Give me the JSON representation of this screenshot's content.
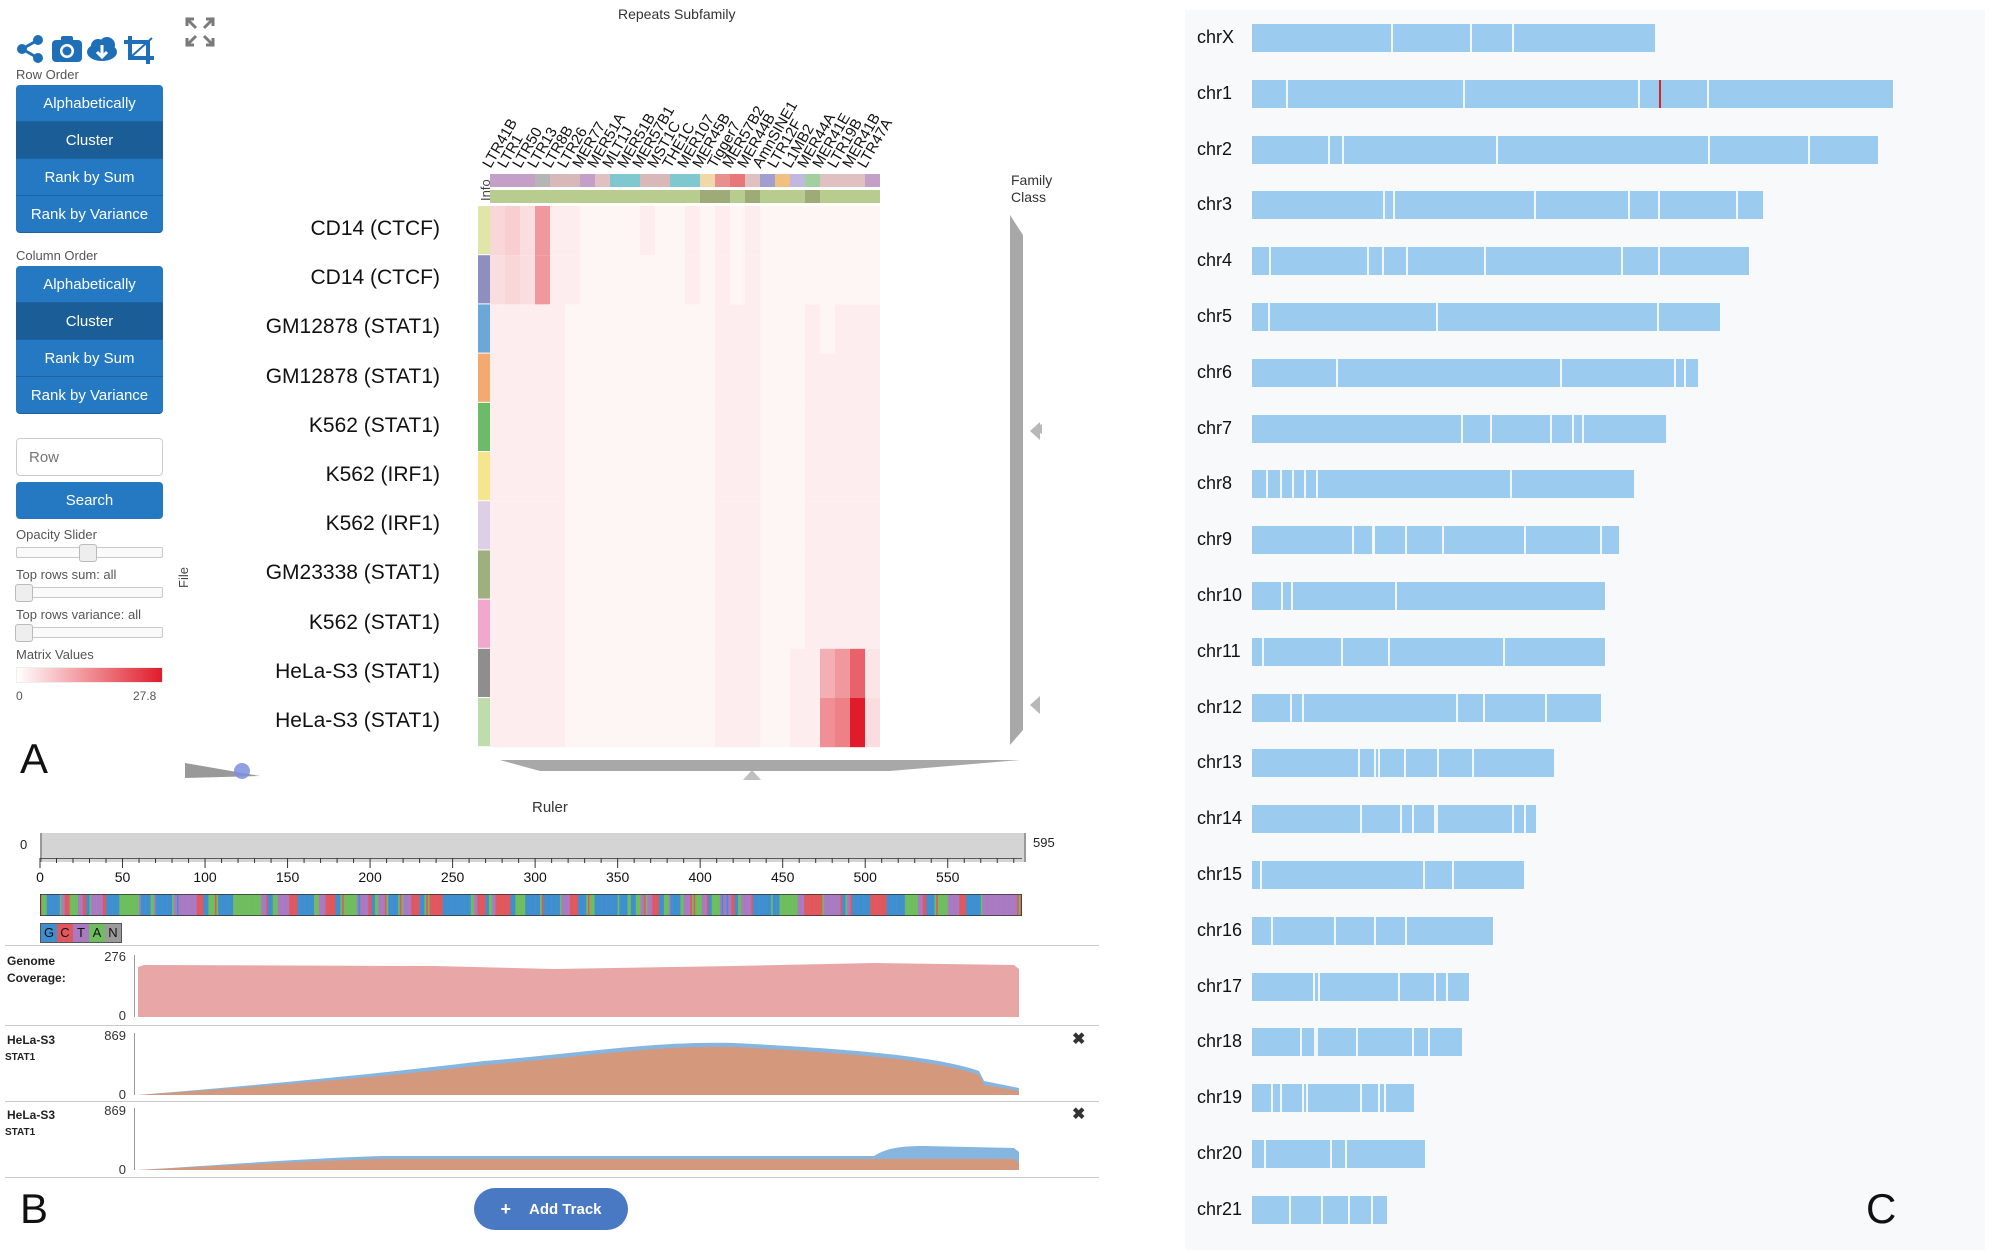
{
  "heatmap": {
    "title": "Repeats Subfamily",
    "row_order_label": "Row Order",
    "column_order_label": "Column Order",
    "row_order_buttons": [
      "Alphabetically",
      "Cluster",
      "Rank by Sum",
      "Rank by Variance"
    ],
    "column_order_buttons": [
      "Alphabetically",
      "Cluster",
      "Rank by Sum",
      "Rank by Variance"
    ],
    "search_placeholder": "Row",
    "search_button": "Search",
    "opacity_label": "Opacity Slider",
    "top_sum_label": "Top rows sum: all",
    "top_variance_label": "Top rows variance: all",
    "matrix_values_label": "Matrix Values",
    "matrix_min": "0",
    "matrix_max": "27.8",
    "info_label": "Info",
    "file_label": "File",
    "family_label": "Family",
    "class_label": "Class",
    "rows": [
      "CD14 (CTCF)",
      "CD14 (CTCF)",
      "GM12878 (STAT1)",
      "GM12878 (STAT1)",
      "K562 (STAT1)",
      "K562 (IRF1)",
      "K562 (IRF1)",
      "GM23338 (STAT1)",
      "K562 (STAT1)",
      "HeLa-S3 (STAT1)",
      "HeLa-S3 (STAT1)"
    ],
    "row_colors": [
      "#dfe6a8",
      "#8f8fbf",
      "#6ba8d6",
      "#f4aa6e",
      "#6dbb6a",
      "#f5e58c",
      "#ddd0e6",
      "#9eb07e",
      "#f0a8cf",
      "#8e8e8e",
      "#bfdcad"
    ],
    "columns": [
      "LTR41B",
      "LTR1",
      "LTR50",
      "LTR13",
      "LTR8B",
      "LTR26",
      "MER77",
      "MER51A",
      "MLT1J",
      "MER51B",
      "MER57B1",
      "MST1C",
      "THE1C",
      "MER107",
      "MER45B",
      "Tigger7",
      "MER57B2",
      "MER44B",
      "AmnSINE1",
      "LTR12F",
      "L1MB2",
      "MER44A",
      "MER41E",
      "LTR19B",
      "MER41B",
      "LTR47A"
    ],
    "family_colors": [
      "#c4a0c8",
      "#c4a0c8",
      "#c4a0c8",
      "#b5b5b5",
      "#d8b8b8",
      "#d8b8b8",
      "#c4a0c8",
      "#e0c0c0",
      "#80c8d0",
      "#80c8d0",
      "#d8b8b8",
      "#d8b8b8",
      "#80c8d0",
      "#80c8d0",
      "#f0d8a8",
      "#e89090",
      "#e87878",
      "#e0c0c0",
      "#a0a0d0",
      "#f0c080",
      "#c0b8e0",
      "#a0d0a0",
      "#e0c0c0",
      "#e0c0c0",
      "#e0c0c0",
      "#c4a0c8"
    ],
    "class_colors": [
      "#b8cc90",
      "#b8cc90",
      "#b8cc90",
      "#b8cc90",
      "#b8cc90",
      "#b8cc90",
      "#b8cc90",
      "#b8cc90",
      "#b8cc90",
      "#b8cc90",
      "#b8cc90",
      "#b8cc90",
      "#b8cc90",
      "#b8cc90",
      "#9eaa78",
      "#9eaa78",
      "#b8cc90",
      "#9eaa78",
      "#b8cc90",
      "#b8cc90",
      "#b8cc90",
      "#9eaa78",
      "#b8cc90",
      "#b8cc90",
      "#b8cc90",
      "#b8cc90"
    ],
    "matrix": [
      [
        4,
        5,
        3,
        12,
        1,
        1,
        0,
        0,
        0,
        0,
        1,
        0,
        0,
        1,
        0,
        1,
        0,
        1,
        0,
        0,
        0,
        0,
        0,
        0,
        0,
        0
      ],
      [
        3,
        4,
        3,
        12,
        1,
        1,
        0,
        0,
        0,
        0,
        0,
        0,
        0,
        1,
        0,
        1,
        0,
        1,
        0,
        0,
        0,
        0,
        0,
        0,
        0,
        0
      ],
      [
        1,
        1,
        1,
        1,
        1,
        0,
        0,
        0,
        0,
        0,
        0,
        0,
        0,
        0,
        0,
        1,
        1,
        1,
        0,
        0,
        0,
        1,
        0,
        1,
        1,
        1
      ],
      [
        1,
        1,
        1,
        1,
        1,
        0,
        0,
        0,
        0,
        0,
        0,
        0,
        0,
        0,
        0,
        1,
        1,
        1,
        0,
        0,
        0,
        1,
        1,
        1,
        1,
        1
      ],
      [
        1,
        1,
        1,
        1,
        1,
        0,
        0,
        0,
        0,
        0,
        0,
        0,
        0,
        0,
        0,
        1,
        1,
        1,
        0,
        0,
        0,
        1,
        1,
        1,
        1,
        1
      ],
      [
        1,
        1,
        1,
        1,
        1,
        0,
        0,
        0,
        0,
        0,
        0,
        0,
        0,
        0,
        0,
        1,
        1,
        1,
        0,
        0,
        0,
        1,
        1,
        1,
        1,
        1
      ],
      [
        1,
        1,
        1,
        1,
        1,
        0,
        0,
        0,
        0,
        0,
        0,
        0,
        0,
        0,
        0,
        1,
        1,
        1,
        0,
        0,
        0,
        1,
        1,
        1,
        1,
        1
      ],
      [
        1,
        1,
        1,
        1,
        1,
        0,
        0,
        0,
        0,
        0,
        0,
        0,
        0,
        0,
        0,
        1,
        1,
        1,
        0,
        0,
        0,
        1,
        1,
        1,
        1,
        1
      ],
      [
        1,
        1,
        1,
        1,
        1,
        0,
        0,
        0,
        0,
        0,
        0,
        0,
        0,
        0,
        0,
        1,
        1,
        1,
        0,
        0,
        0,
        1,
        1,
        1,
        1,
        1
      ],
      [
        1,
        1,
        1,
        1,
        1,
        0,
        0,
        0,
        0,
        0,
        0,
        0,
        0,
        0,
        0,
        1,
        1,
        1,
        0,
        0,
        1,
        1,
        9,
        12,
        19,
        2
      ],
      [
        1,
        1,
        1,
        1,
        1,
        0,
        0,
        0,
        0,
        0,
        0,
        0,
        0,
        0,
        0,
        1,
        1,
        1,
        0,
        0,
        1,
        1,
        13,
        15,
        27.8,
        3
      ]
    ]
  },
  "genome_browser": {
    "ruler_label": "Ruler",
    "range_start": "0",
    "range_end": "595",
    "ticks": [
      "0",
      "50",
      "100",
      "150",
      "200",
      "250",
      "300",
      "350",
      "400",
      "450",
      "500",
      "550"
    ],
    "tick_values": [
      0,
      50,
      100,
      150,
      200,
      250,
      300,
      350,
      400,
      450,
      500,
      550
    ],
    "max_position": 595,
    "nucleotide_legend": [
      {
        "base": "G",
        "color": "#3f8fd0"
      },
      {
        "base": "C",
        "color": "#e0585e"
      },
      {
        "base": "T",
        "color": "#a97ac2"
      },
      {
        "base": "A",
        "color": "#6ebd5e"
      },
      {
        "base": "N",
        "color": "#9a9a9a"
      }
    ],
    "tracks": [
      {
        "title": "Genome",
        "subtitle": "Coverage:",
        "max": "276",
        "min": "0",
        "closable": false
      },
      {
        "title": "HeLa-S3",
        "subtitle": "STAT1",
        "max": "869",
        "min": "0",
        "closable": true
      },
      {
        "title": "HeLa-S3",
        "subtitle": "STAT1",
        "max": "869",
        "min": "0",
        "closable": true
      }
    ],
    "close_glyph": "✖",
    "add_track_label": "Add Track",
    "add_track_glyph": "+"
  },
  "karyotype": {
    "chromosomes": [
      {
        "name": "chrX",
        "len": 0.56
      },
      {
        "name": "chr1",
        "len": 0.89
      },
      {
        "name": "chr2",
        "len": 0.87
      },
      {
        "name": "chr3",
        "len": 0.71
      },
      {
        "name": "chr4",
        "len": 0.69
      },
      {
        "name": "chr5",
        "len": 0.65
      },
      {
        "name": "chr6",
        "len": 0.62
      },
      {
        "name": "chr7",
        "len": 0.575
      },
      {
        "name": "chr8",
        "len": 0.53
      },
      {
        "name": "chr9",
        "len": 0.51
      },
      {
        "name": "chr10",
        "len": 0.49
      },
      {
        "name": "chr11",
        "len": 0.49
      },
      {
        "name": "chr12",
        "len": 0.485
      },
      {
        "name": "chr13",
        "len": 0.42
      },
      {
        "name": "chr14",
        "len": 0.395
      },
      {
        "name": "chr15",
        "len": 0.378
      },
      {
        "name": "chr16",
        "len": 0.335
      },
      {
        "name": "chr17",
        "len": 0.302
      },
      {
        "name": "chr18",
        "len": 0.292
      },
      {
        "name": "chr19",
        "len": 0.225
      },
      {
        "name": "chr20",
        "len": 0.24
      },
      {
        "name": "chr21",
        "len": 0.188
      }
    ],
    "highlight_color": "#d9232a"
  },
  "panel_letters": {
    "a": "A",
    "b": "B",
    "c": "C"
  }
}
